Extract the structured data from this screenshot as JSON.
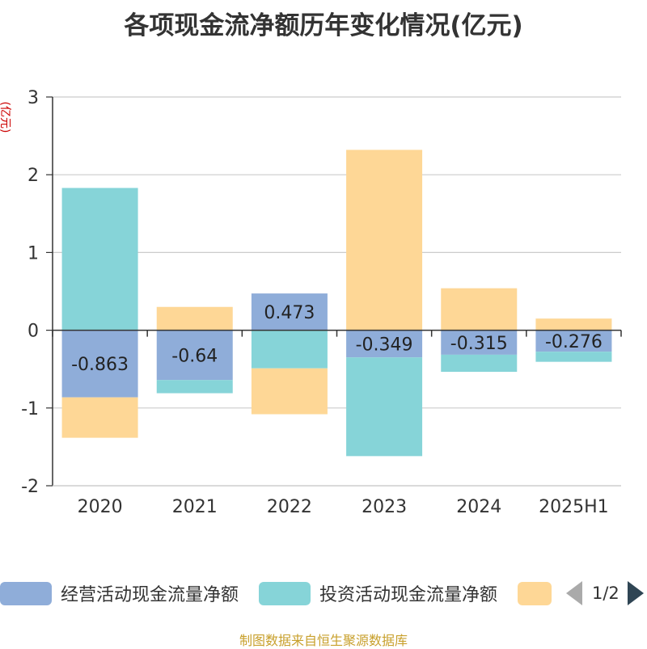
{
  "title": "各项现金流净额历年变化情况(亿元)",
  "source": "制图数据来自恒生聚源数据库",
  "colors": {
    "operating": "#8fadd9",
    "investing": "#86d4d8",
    "financing": "#fed796",
    "unit_label": "#cc0000",
    "axis": "#333333",
    "grid": "#cccccc"
  },
  "legend": {
    "items": [
      {
        "label": "经营活动现金流量净额",
        "color": "#8fadd9"
      },
      {
        "label": "投资活动现金流量净额",
        "color": "#86d4d8"
      },
      {
        "label": "",
        "color": "#fed796"
      }
    ],
    "page_indicator": "1/2",
    "prev_icon": "triangle-left-icon",
    "next_icon": "triangle-right-icon"
  },
  "chart_data": {
    "type": "bar",
    "stacked": true,
    "categories": [
      "2020",
      "2021",
      "2022",
      "2023",
      "2024",
      "2025H1"
    ],
    "ylabel": "(亿元)",
    "ylim": [
      -2,
      3
    ],
    "yticks": [
      -2,
      -1,
      0,
      1,
      2,
      3
    ],
    "grid": true,
    "legend_position": "bottom",
    "series": [
      {
        "name": "经营活动现金流量净额",
        "color": "#8fadd9",
        "values": [
          -0.863,
          -0.64,
          0.473,
          -0.349,
          -0.315,
          -0.276
        ],
        "labels": [
          "-0.863",
          "-0.64",
          "0.473",
          "-0.349",
          "-0.315",
          "-0.276"
        ]
      },
      {
        "name": "投资活动现金流量净额",
        "color": "#86d4d8",
        "values": [
          1.83,
          -0.17,
          -0.49,
          -1.27,
          -0.22,
          -0.13
        ]
      },
      {
        "color": "#fed796",
        "values": [
          -0.52,
          0.3,
          -0.59,
          2.32,
          0.54,
          0.15
        ]
      }
    ]
  }
}
